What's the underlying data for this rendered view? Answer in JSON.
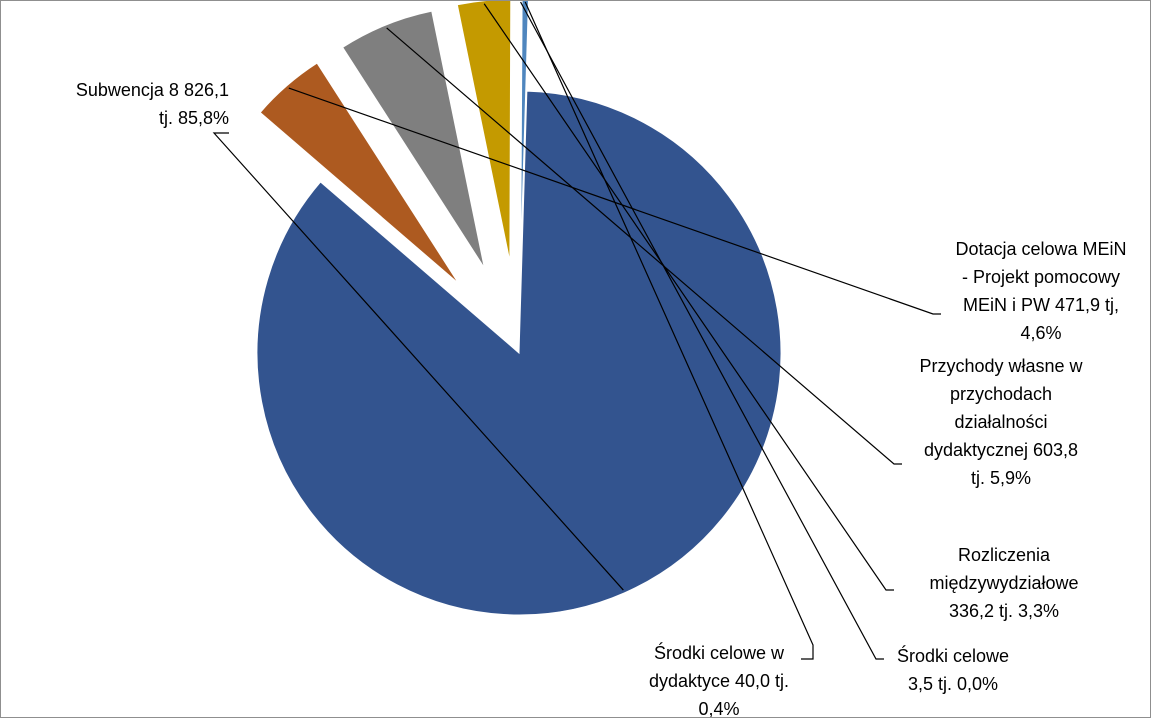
{
  "chart_data": {
    "type": "pie",
    "title": "",
    "series": [
      {
        "values": [
          8826.1,
          471.9,
          603.8,
          336.2,
          3.5,
          40.0
        ],
        "percentages": [
          85.8,
          4.6,
          5.9,
          3.3,
          0.0,
          0.4
        ]
      }
    ],
    "slices": [
      {
        "category": "Subwencja",
        "value": 8826.1,
        "percent": 85.8,
        "color": "#33548f",
        "label_lines": [
          "Subwencja 8 826,1",
          "tj. 85,8%"
        ]
      },
      {
        "category": "Dotacja celowa MEiN - Projekt pomocowy MEiN i PW",
        "value": 471.9,
        "percent": 4.6,
        "color": "#ad5a20",
        "label_lines": [
          "Dotacja celowa MEiN",
          "- Projekt pomocowy",
          "MEiN i PW 471,9   tj,",
          "4,6%"
        ]
      },
      {
        "category": "Przychody własne w przychodach działalności dydaktycznej",
        "value": 603.8,
        "percent": 5.9,
        "color": "#7f7f7f",
        "label_lines": [
          "Przychody własne w",
          "przychodach",
          "działalności",
          "dydaktycznej 603,8",
          "tj. 5,9%"
        ]
      },
      {
        "category": "Rozliczenia międzywydziałowe",
        "value": 336.2,
        "percent": 3.3,
        "color": "#c49a00",
        "label_lines": [
          "Rozliczenia",
          "międzywydziałowe",
          "336,2  tj. 3,3%"
        ]
      },
      {
        "category": "Środki celowe",
        "value": 3.5,
        "percent": 0.0,
        "color": "#2f5f9f",
        "label_lines": [
          "Środki celowe",
          "3,5 tj. 0,0%"
        ]
      },
      {
        "category": "Środki celowe w dydaktyce",
        "value": 40.0,
        "percent": 0.4,
        "color": "#4f86be",
        "label_lines": [
          "Środki celowe w",
          "dydaktyce   40,0  tj.",
          "0,4%"
        ]
      }
    ],
    "legend": "none"
  }
}
